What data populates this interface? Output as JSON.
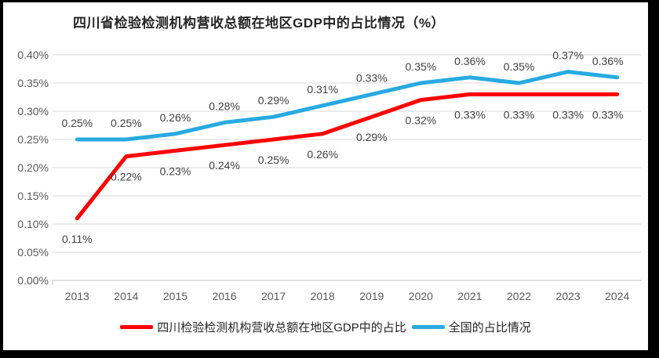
{
  "window": {
    "frame_color": "#000000",
    "background": "#ffffff"
  },
  "title": "四川省检验检测机构营收总额在地区GDP中的占比情况（%）",
  "chart_data": {
    "type": "line",
    "title": "四川省检验检测机构营收总额在地区GDP中的占比情况（%）",
    "categories": [
      "2013",
      "2014",
      "2015",
      "2016",
      "2017",
      "2018",
      "2019",
      "2020",
      "2021",
      "2022",
      "2023",
      "2024"
    ],
    "series": [
      {
        "name": "四川检验检测机构营收总额在地区GDP中的占比",
        "color": "#FF0000",
        "values": [
          0.11,
          0.22,
          0.23,
          0.24,
          0.25,
          0.26,
          0.29,
          0.32,
          0.33,
          0.33,
          0.33,
          0.33
        ],
        "labels": [
          "0.11%",
          "0.22%",
          "0.23%",
          "0.24%",
          "0.25%",
          "0.26%",
          "0.29%",
          "0.32%",
          "0.33%",
          "0.33%",
          "0.33%",
          "0.33%"
        ],
        "label_position": "below"
      },
      {
        "name": "全国的占比情况",
        "color": "#27AAE1",
        "values": [
          0.25,
          0.25,
          0.26,
          0.28,
          0.29,
          0.31,
          0.33,
          0.35,
          0.36,
          0.35,
          0.37,
          0.36
        ],
        "labels": [
          "0.25%",
          "0.25%",
          "0.26%",
          "0.28%",
          "0.29%",
          "0.31%",
          "0.33%",
          "0.35%",
          "0.36%",
          "0.35%",
          "0.37%",
          "0.36%"
        ],
        "label_position": "above"
      }
    ],
    "xlabel": "",
    "ylabel": "",
    "ylim": [
      0,
      0.4
    ],
    "ytick_step": 0.05,
    "ytick_labels": [
      "0.00%",
      "0.05%",
      "0.10%",
      "0.15%",
      "0.20%",
      "0.25%",
      "0.30%",
      "0.35%",
      "0.40%"
    ],
    "grid": true,
    "legend_position": "bottom",
    "styles": {
      "grid_color": "#D9D9D9",
      "axis_color": "#BFBFBF",
      "data_label_color": "#404040",
      "tick_label_color": "#595959",
      "line_width": 5
    }
  }
}
